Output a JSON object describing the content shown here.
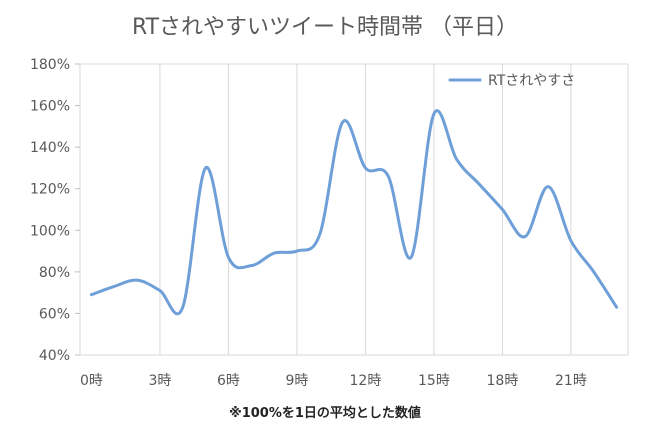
{
  "chart_data": {
    "type": "line",
    "title": "RTされやすいツイート時間帯 （平日）",
    "xlabel": "",
    "ylabel": "",
    "x": [
      0,
      1,
      2,
      3,
      4,
      5,
      6,
      7,
      8,
      9,
      10,
      11,
      12,
      13,
      14,
      15,
      16,
      17,
      18,
      19,
      20,
      21,
      22,
      23
    ],
    "x_tick_labels": [
      "0時",
      "3時",
      "6時",
      "9時",
      "12時",
      "15時",
      "18時",
      "21時"
    ],
    "x_tick_positions": [
      0,
      3,
      6,
      9,
      12,
      15,
      18,
      21
    ],
    "xlim": [
      -0.5,
      23.5
    ],
    "y_tick_labels": [
      "40%",
      "60%",
      "80%",
      "100%",
      "120%",
      "140%",
      "160%",
      "180%"
    ],
    "y_tick_values": [
      40,
      60,
      80,
      100,
      120,
      140,
      160,
      180
    ],
    "ylim": [
      40,
      180
    ],
    "grid": "vertical",
    "legend_position": "top-right",
    "series": [
      {
        "name": "RTされやすさ",
        "color": "#6f9fd8",
        "values": [
          69,
          73,
          76,
          71,
          63,
          130,
          87,
          83,
          89,
          90,
          98,
          152,
          130,
          126,
          87,
          156,
          134,
          122,
          110,
          97,
          121,
          95,
          80,
          63
        ]
      }
    ],
    "annotation": "※100%を1日の平均とした数値"
  }
}
